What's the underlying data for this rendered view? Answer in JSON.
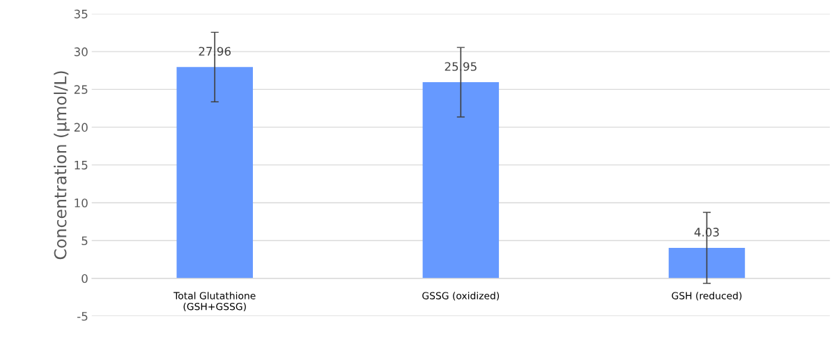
{
  "chart_data": {
    "type": "bar",
    "categories": [
      "Total Glutathione\n(GSH+GSSG)",
      "GSSG (oxidized)",
      "GSH (reduced)"
    ],
    "values": [
      27.96,
      25.95,
      4.03
    ],
    "errors": [
      4.6,
      4.6,
      4.7
    ],
    "color": "#6699ff",
    "ylabel": "Concentration (µmol/L)",
    "ylim": [
      -5,
      35
    ],
    "yticks": [
      -5,
      0,
      5,
      10,
      15,
      20,
      25,
      30,
      35
    ],
    "grid": "y",
    "data_labels": true
  }
}
